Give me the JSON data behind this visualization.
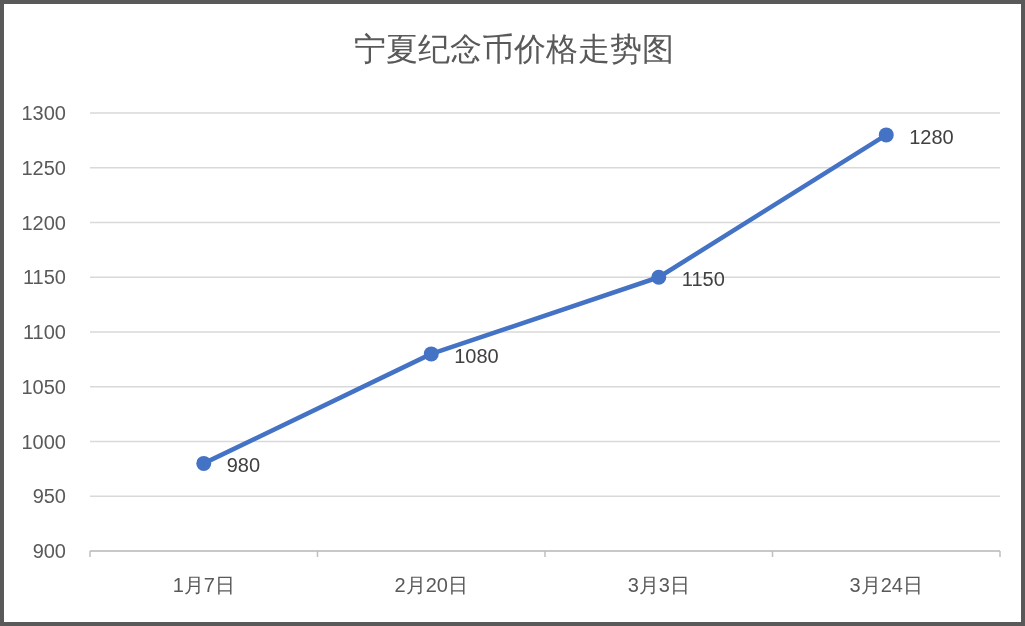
{
  "chart_data": {
    "type": "line",
    "title": "宁夏纪念币价格走势图",
    "categories": [
      "1月7日",
      "2月20日",
      "3月3日",
      "3月24日"
    ],
    "values": [
      980,
      1080,
      1150,
      1280
    ],
    "color": "#4472c4",
    "ylim": [
      900,
      1300
    ],
    "yticks": [
      900,
      950,
      1000,
      1050,
      1100,
      1150,
      1200,
      1250,
      1300
    ],
    "grid": "y",
    "marker": "circle",
    "data_labels": true
  }
}
